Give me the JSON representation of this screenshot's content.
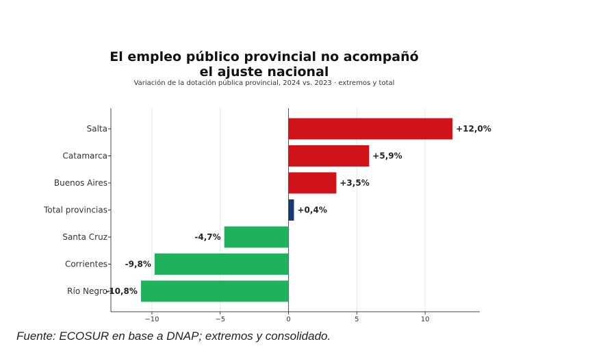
{
  "chart_data": {
    "type": "bar",
    "orientation": "horizontal",
    "title": "El empleo público provincial no acompañó\nel ajuste nacional",
    "subtitle": "Variación de la dotación pública provincial, 2024 vs. 2023 · extremos y total",
    "categories": [
      "Salta",
      "Catamarca",
      "Buenos Aires",
      "Total provincias",
      "Santa Cruz",
      "Corrientes",
      "Río Negro"
    ],
    "values": [
      12.0,
      5.9,
      3.5,
      0.4,
      -4.7,
      -9.8,
      -10.8
    ],
    "data_labels": [
      "+12,0%",
      "+5,9%",
      "+3,5%",
      "+0,4%",
      "-4,7%",
      "-9,8%",
      "-10,8%"
    ],
    "colors": [
      "#d0121b",
      "#d0121b",
      "#d0121b",
      "#1a3a6e",
      "#21b05c",
      "#21b05c",
      "#21b05c"
    ],
    "xlim": [
      -13,
      14
    ],
    "xticks": [
      -10,
      -5,
      0,
      5,
      10
    ],
    "xtick_labels": [
      "−10",
      "−5",
      "0",
      "5",
      "10"
    ],
    "xlabel": "",
    "ylabel": "",
    "grid": "vertical"
  },
  "source_note": "Fuente: ECOSUR en base a DNAP; extremos y consolidado."
}
